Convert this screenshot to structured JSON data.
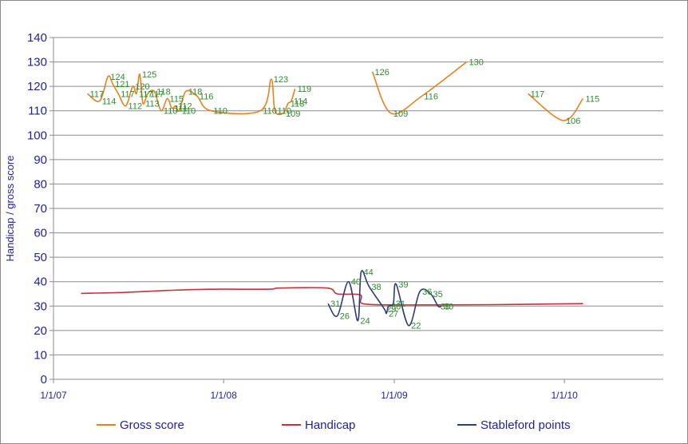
{
  "chart_data": {
    "type": "line",
    "title": "",
    "xlabel": "",
    "ylabel": "Handicap / gross score",
    "x_tick_labels": [
      "1/1/07",
      "1/1/08",
      "1/1/09",
      "1/1/10"
    ],
    "x_ticks": [
      "2007-01-01",
      "2008-01-01",
      "2009-01-01",
      "2010-01-01"
    ],
    "xlim": [
      "2007-01-01",
      "2010-08-01"
    ],
    "ylim": [
      0,
      140
    ],
    "yticks": [
      0,
      10,
      20,
      30,
      40,
      50,
      60,
      70,
      80,
      90,
      100,
      110,
      120,
      130,
      140
    ],
    "grid": "horizontal",
    "legend_position": "bottom",
    "series": [
      {
        "name": "Gross score",
        "color": "#e8821e",
        "labels": true,
        "points": [
          [
            "2007-03-15",
            117
          ],
          [
            "2007-04-10",
            114
          ],
          [
            "2007-04-28",
            124
          ],
          [
            "2007-05-08",
            121
          ],
          [
            "2007-05-20",
            117
          ],
          [
            "2007-06-05",
            112
          ],
          [
            "2007-06-20",
            120
          ],
          [
            "2007-06-28",
            117
          ],
          [
            "2007-07-05",
            125
          ],
          [
            "2007-07-12",
            113
          ],
          [
            "2007-07-22",
            117
          ],
          [
            "2007-08-05",
            118
          ],
          [
            "2007-08-20",
            110
          ],
          [
            "2007-09-02",
            115
          ],
          [
            "2007-09-12",
            111
          ],
          [
            "2007-09-20",
            112
          ],
          [
            "2007-09-28",
            110
          ],
          [
            "2007-10-12",
            118
          ],
          [
            "2007-11-05",
            116
          ],
          [
            "2007-12-05",
            110
          ],
          [
            "2008-03-20",
            110
          ],
          [
            "2008-04-12",
            123
          ],
          [
            "2008-04-20",
            110
          ],
          [
            "2008-05-08",
            109
          ],
          [
            "2008-05-18",
            113
          ],
          [
            "2008-05-25",
            114
          ],
          [
            "2008-06-02",
            119
          ]
        ]
      },
      {
        "name": "Gross score",
        "color": "#e8821e",
        "labels": true,
        "legend": false,
        "points": [
          [
            "2008-11-15",
            126
          ],
          [
            "2008-12-25",
            109
          ],
          [
            "2009-03-01",
            116
          ],
          [
            "2009-06-05",
            130
          ]
        ]
      },
      {
        "name": "Gross score",
        "color": "#e8821e",
        "labels": true,
        "legend": false,
        "points": [
          [
            "2009-10-15",
            117
          ],
          [
            "2009-12-30",
            106
          ],
          [
            "2010-02-10",
            115
          ]
        ]
      },
      {
        "name": "Handicap",
        "color": "#c8323c",
        "labels": false,
        "points": [
          [
            "2007-03-01",
            35.2
          ],
          [
            "2007-06-01",
            35.6
          ],
          [
            "2007-09-01",
            36.4
          ],
          [
            "2007-12-01",
            36.9
          ],
          [
            "2008-03-01",
            36.9
          ],
          [
            "2008-04-15",
            37.0
          ],
          [
            "2008-05-01",
            37.4
          ],
          [
            "2008-08-10",
            37.4
          ],
          [
            "2008-09-01",
            35.0
          ],
          [
            "2008-10-20",
            34.6
          ],
          [
            "2008-10-25",
            31.0
          ],
          [
            "2009-01-01",
            30.5
          ],
          [
            "2009-04-01",
            30.5
          ],
          [
            "2009-08-01",
            30.6
          ],
          [
            "2010-02-10",
            31.0
          ]
        ]
      },
      {
        "name": "Stableford points",
        "color": "#2a3c78",
        "labels": true,
        "points": [
          [
            "2008-08-12",
            31
          ],
          [
            "2008-09-01",
            26
          ],
          [
            "2008-09-25",
            40
          ],
          [
            "2008-10-15",
            24
          ],
          [
            "2008-10-22",
            44
          ],
          [
            "2008-11-08",
            38
          ],
          [
            "2008-12-10",
            29
          ],
          [
            "2008-12-15",
            27
          ],
          [
            "2008-12-20",
            30
          ],
          [
            "2008-12-30",
            31
          ],
          [
            "2009-01-05",
            39
          ],
          [
            "2009-02-01",
            22
          ],
          [
            "2009-02-25",
            36
          ],
          [
            "2009-03-20",
            35
          ],
          [
            "2009-04-05",
            30
          ],
          [
            "2009-04-12",
            30
          ]
        ]
      }
    ],
    "legend": [
      {
        "name": "Gross score",
        "color": "#e8821e"
      },
      {
        "name": "Handicap",
        "color": "#c8323c"
      },
      {
        "name": "Stableford points",
        "color": "#2a3c78"
      }
    ]
  }
}
